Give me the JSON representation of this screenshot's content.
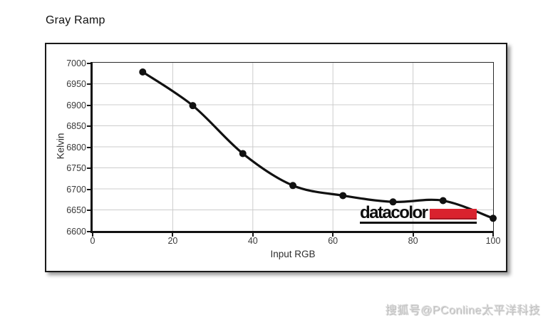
{
  "header": {
    "title": "Gray Ramp"
  },
  "logo": {
    "text": "datacolor",
    "bar_color": "#d9222e"
  },
  "watermark": {
    "text": "搜狐号@PConline太平洋科技"
  },
  "chart_data": {
    "type": "line",
    "title": "Gray Ramp",
    "xlabel": "Input RGB",
    "ylabel": "Kelvin",
    "x": [
      12.5,
      25,
      37.5,
      50,
      62.5,
      75,
      87.5,
      100
    ],
    "y": [
      6978,
      6898,
      6784,
      6708,
      6684,
      6669,
      6672,
      6630
    ],
    "xlim": [
      0,
      100
    ],
    "ylim": [
      6600,
      7000
    ],
    "x_ticks": [
      0,
      20,
      40,
      60,
      80,
      100
    ],
    "y_ticks": [
      6600,
      6650,
      6700,
      6750,
      6800,
      6850,
      6900,
      6950,
      7000
    ],
    "grid": true,
    "grid_color": "#cccccc",
    "line_color": "#111111",
    "marker": "circle",
    "marker_radius": 5,
    "line_width": 3.2,
    "legend": "none"
  }
}
